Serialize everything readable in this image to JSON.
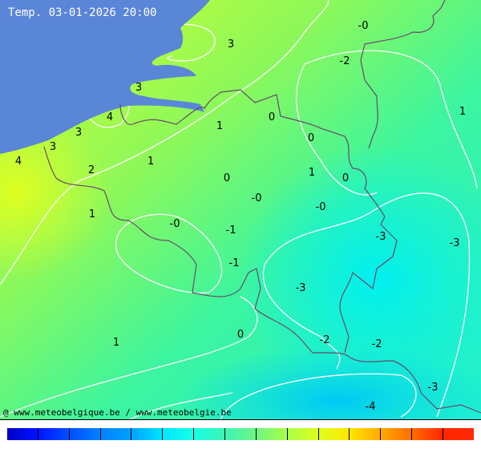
{
  "title": "Temp. 03-01-2026 20:00",
  "credit": "@ www.meteobelgique.be / www.meteobelgie.be",
  "colors": {
    "sea": "#5a86d8",
    "isoline": "#ffffff",
    "border": "#6a4a6a"
  },
  "temperature_labels": [
    "-0",
    "-2",
    "3",
    "3",
    "1",
    "4",
    "3",
    "1",
    "0",
    "0",
    "3",
    "2",
    "1",
    "0",
    "1",
    "0",
    "4",
    "-0",
    "-0",
    "1",
    "-0",
    "-1",
    "-3",
    "-3",
    "-1",
    "-3",
    "0",
    "1",
    "-2",
    "-2",
    "-3",
    "-4"
  ],
  "colorbar": [
    "#0000c8",
    "#0014ff",
    "#0050ff",
    "#0082ff",
    "#00a0ff",
    "#00e6ff",
    "#18ffe6",
    "#3cf5b4",
    "#6ef582",
    "#aaff46",
    "#ddff1e",
    "#ffe600",
    "#ffaa00",
    "#ff6e00",
    "#ff2800"
  ]
}
